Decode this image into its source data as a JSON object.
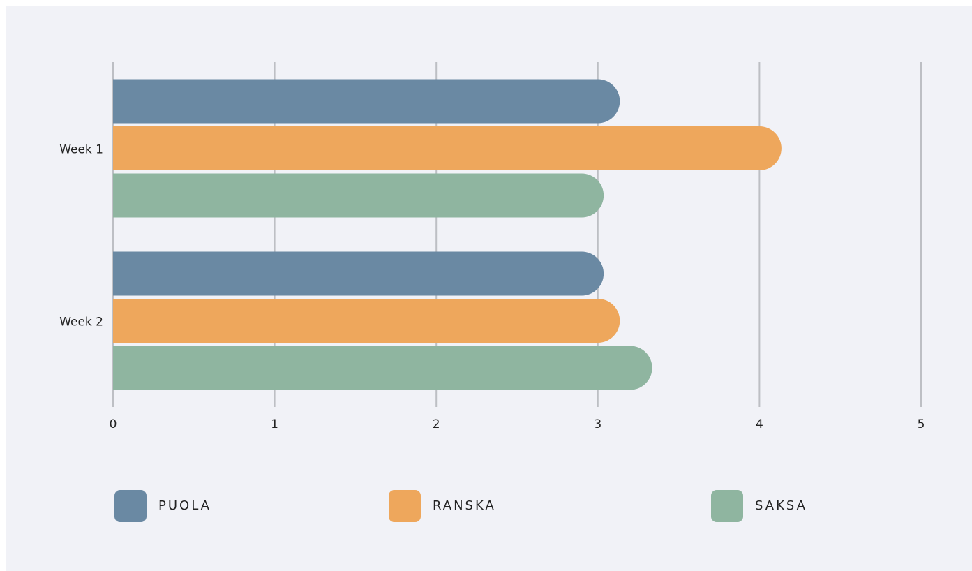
{
  "chart_data": {
    "type": "bar",
    "orientation": "horizontal",
    "categories": [
      "Week 1",
      "Week 2"
    ],
    "series": [
      {
        "name": "PUOLA",
        "color": "#6a89a3",
        "values": [
          3,
          2.9
        ]
      },
      {
        "name": "RANSKA",
        "color": "#eea75c",
        "values": [
          4,
          3
        ]
      },
      {
        "name": "SAKSA",
        "color": "#8fb5a0",
        "values": [
          2.9,
          3.2
        ]
      }
    ],
    "xlim": [
      0,
      5
    ],
    "xticks": [
      0,
      1,
      2,
      3,
      4,
      5
    ],
    "grid": true,
    "legend": "bottom"
  }
}
